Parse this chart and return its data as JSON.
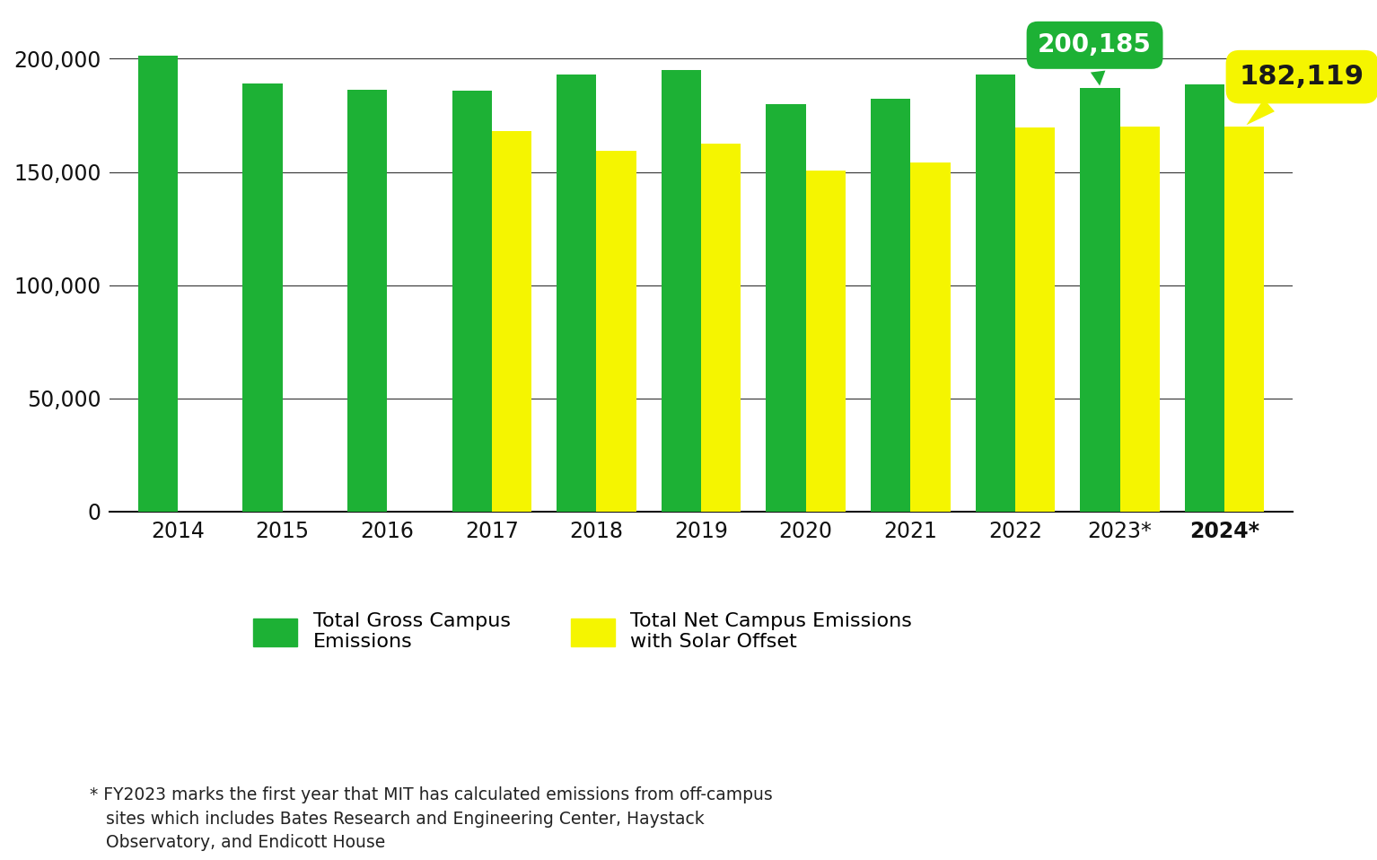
{
  "years": [
    "2014",
    "2015",
    "2016",
    "2017",
    "2018",
    "2019",
    "2020",
    "2021",
    "2022",
    "2023*",
    "2024*"
  ],
  "gross_emissions": [
    201500,
    189000,
    186500,
    186000,
    193000,
    195000,
    180000,
    182500,
    193000,
    187000,
    188500
  ],
  "net_emissions": [
    null,
    null,
    null,
    168000,
    159500,
    162500,
    150500,
    154000,
    169500,
    170000,
    170000
  ],
  "gross_color": "#1db135",
  "net_color": "#f5f500",
  "background_color": "#ffffff",
  "bar_width": 0.38,
  "bar_gap": 0.0,
  "ylim": [
    0,
    220000
  ],
  "yticks": [
    0,
    50000,
    100000,
    150000,
    200000
  ],
  "ytick_labels": [
    "0",
    "50,000",
    "100,000",
    "150,000",
    "200,000"
  ],
  "legend_gross": "Total Gross Campus\nEmissions",
  "legend_net": "Total Net Campus Emissions\nwith Solar Offset",
  "footnote": "* FY2023 marks the first year that MIT has calculated emissions from off-campus\n   sites which includes Bates Research and Engineering Center, Haystack\n   Observatory, and Endicott House",
  "callout_2023_value": "200,185",
  "callout_2024_value": "182,119",
  "callout_2023_color": "#1db135",
  "callout_2024_color": "#f5f500",
  "callout_2023_text_color": "#ffffff",
  "callout_2024_text_color": "#1a1a1a",
  "grid_color": "#333333",
  "grid_linewidth": 0.8
}
